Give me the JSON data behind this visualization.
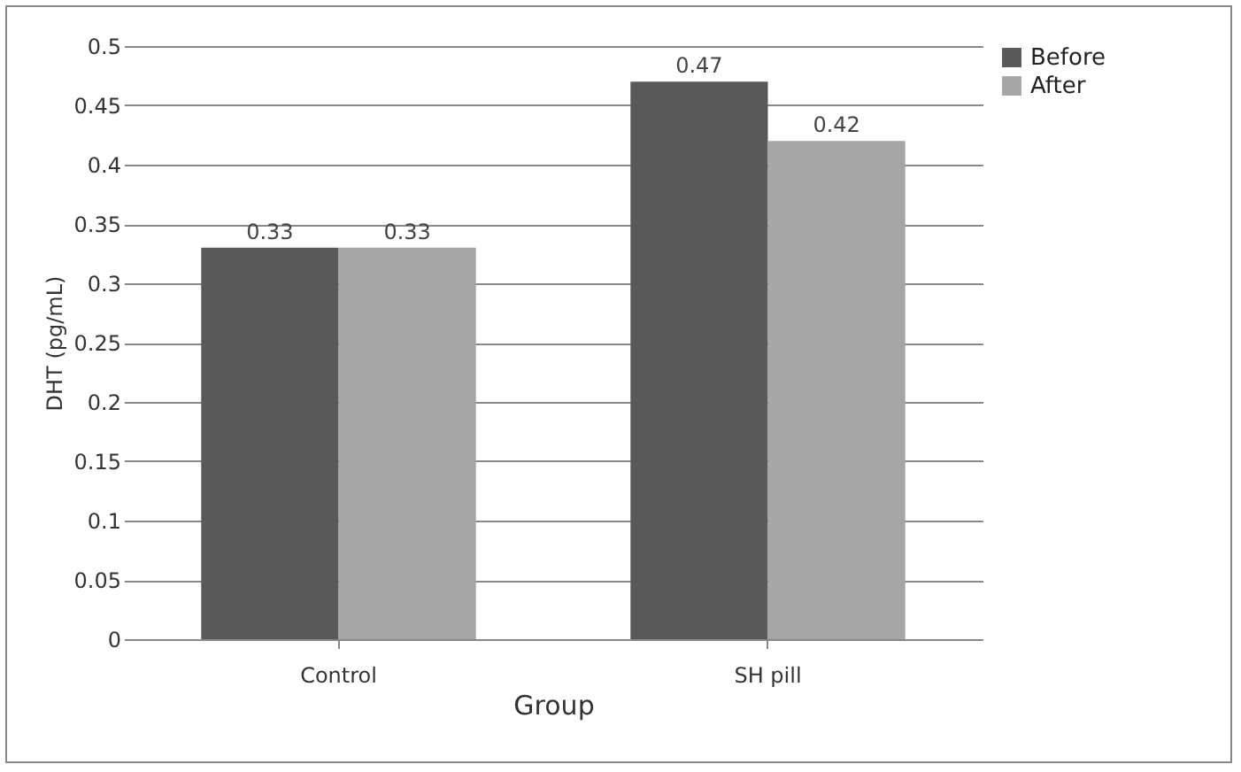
{
  "chart_data": {
    "type": "bar",
    "xlabel": "Group",
    "ylabel": "DHT (pg/mL)",
    "categories": [
      "Control",
      "SH pill"
    ],
    "series": [
      {
        "name": "Before",
        "color": "#595959",
        "values": [
          0.33,
          0.47
        ]
      },
      {
        "name": "After",
        "color": "#a6a6a6",
        "values": [
          0.33,
          0.42
        ]
      }
    ],
    "ylim": [
      0,
      0.5
    ],
    "yticks": [
      0,
      0.05,
      0.1,
      0.15,
      0.2,
      0.25,
      0.3,
      0.35,
      0.4,
      0.45,
      0.5
    ],
    "grid": "y",
    "legend": "right",
    "data_labels": true
  }
}
